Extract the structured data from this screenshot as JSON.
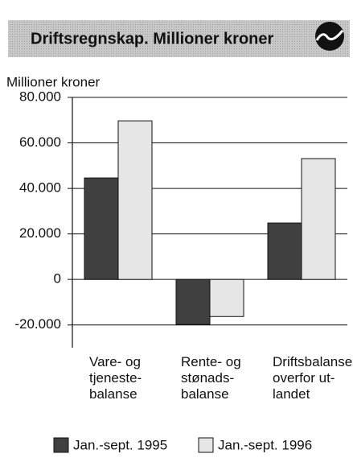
{
  "chart_data": {
    "type": "bar",
    "title": "Driftsregnskap. Millioner kroner",
    "y_label": "Millioner kroner",
    "categories": [
      "Vare- og\ntjeneste-\nbalanse",
      "Rente- og\nstønads-\nbalanse",
      "Driftsbalanse\noverfor ut-\nlandet"
    ],
    "series": [
      {
        "name": "Jan.-sept. 1995",
        "color": "#404040",
        "values": [
          44600,
          -19800,
          24800
        ]
      },
      {
        "name": "Jan.-sept. 1996",
        "color": "#e6e6e6",
        "values": [
          69700,
          -16300,
          53100
        ]
      }
    ],
    "ylim": [
      -30000,
      80000
    ],
    "yticks": [
      {
        "value": 80000,
        "label": "80.000"
      },
      {
        "value": 60000,
        "label": "60.000"
      },
      {
        "value": 40000,
        "label": "40.000"
      },
      {
        "value": 20000,
        "label": "20.000"
      },
      0,
      {
        "value": -20000,
        "label": "-20.000"
      }
    ],
    "grid": true,
    "legend": "bottom"
  }
}
